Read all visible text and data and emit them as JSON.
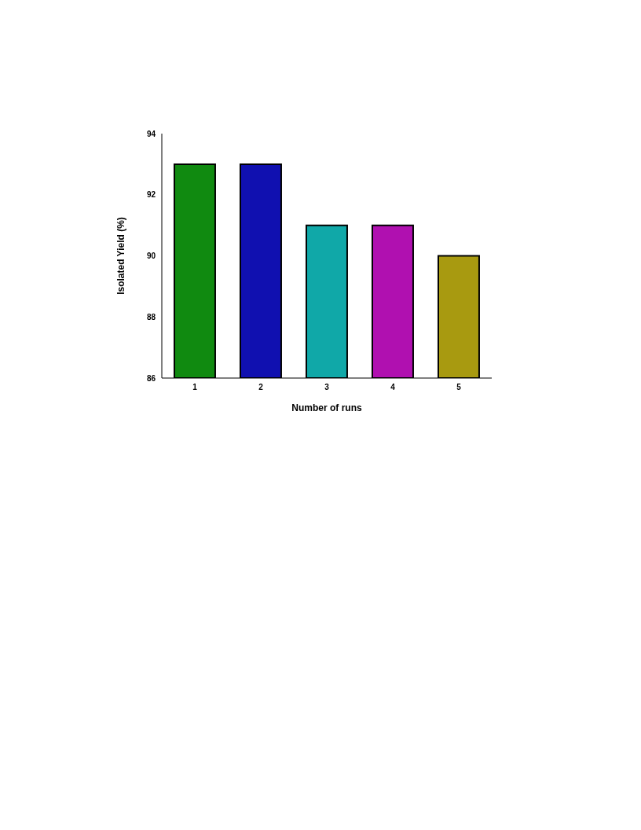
{
  "chart_data": {
    "type": "bar",
    "xlabel": "Number of runs",
    "ylabel": "Isolated Yield (%)",
    "categories": [
      "1",
      "2",
      "3",
      "4",
      "5"
    ],
    "values": [
      93,
      93,
      91,
      91,
      90
    ],
    "colors": [
      "#108a10",
      "#1010b0",
      "#10a8a8",
      "#b010b0",
      "#a89a10"
    ],
    "ylim": [
      86,
      94
    ],
    "yticks": [
      86,
      88,
      90,
      92,
      94
    ],
    "grid": false,
    "legend": false
  }
}
